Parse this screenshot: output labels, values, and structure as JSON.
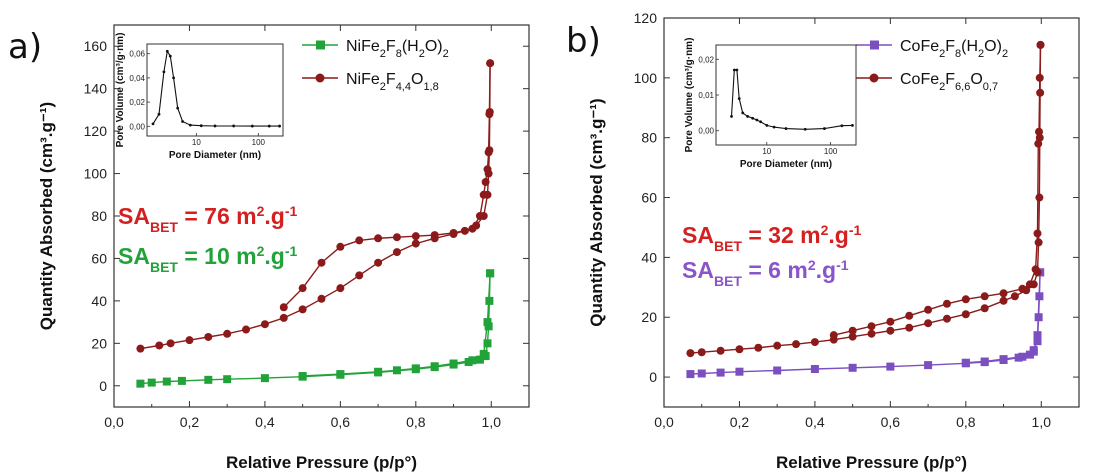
{
  "colors": {
    "red": "#8b1a1a",
    "green": "#22a33a",
    "purple": "#7b4fc0",
    "sa_red": "#d42020",
    "sa_green": "#22a33a",
    "sa_purple": "#8a55c8"
  },
  "chart_data": [
    {
      "type": "line",
      "panel_label": "a)",
      "xlabel": "Relative Pressure (p/p°)",
      "ylabel": "Quantity Absorbed (cm³.g⁻¹)",
      "xlim": [
        0,
        1.1
      ],
      "ylim": [
        -10,
        170
      ],
      "x_ticks": [
        {
          "v": 0,
          "label": "0,0"
        },
        {
          "v": 0.2,
          "label": "0,2"
        },
        {
          "v": 0.4,
          "label": "0,4"
        },
        {
          "v": 0.6,
          "label": "0,6"
        },
        {
          "v": 0.8,
          "label": "0,8"
        },
        {
          "v": 1.0,
          "label": "1,0"
        }
      ],
      "y_ticks": [
        {
          "v": 0,
          "label": "0"
        },
        {
          "v": 20,
          "label": "20"
        },
        {
          "v": 40,
          "label": "40"
        },
        {
          "v": 60,
          "label": "60"
        },
        {
          "v": 80,
          "label": "80"
        },
        {
          "v": 100,
          "label": "100"
        },
        {
          "v": 120,
          "label": "120"
        },
        {
          "v": 140,
          "label": "140"
        },
        {
          "v": 160,
          "label": "160"
        }
      ],
      "series": [
        {
          "name_main": "NiFe",
          "name_sub": [
            "2",
            "8",
            "2"
          ],
          "name_parts": [
            [
              "NiFe",
              ""
            ],
            [
              "2",
              "sub"
            ],
            [
              "F",
              ""
            ],
            [
              "8",
              "sub"
            ],
            [
              "(H",
              ""
            ],
            [
              "2",
              "sub"
            ],
            [
              "O)",
              ""
            ],
            [
              "2",
              "sub"
            ]
          ],
          "color": "#22a33a",
          "marker": "square",
          "adsorption": [
            [
              0.07,
              1
            ],
            [
              0.1,
              1.5
            ],
            [
              0.14,
              2
            ],
            [
              0.18,
              2.3
            ],
            [
              0.25,
              2.8
            ],
            [
              0.3,
              3.1
            ],
            [
              0.4,
              3.6
            ],
            [
              0.5,
              4.3
            ],
            [
              0.6,
              5.2
            ],
            [
              0.7,
              6.3
            ],
            [
              0.8,
              7.8
            ],
            [
              0.85,
              8.8
            ],
            [
              0.9,
              10
            ],
            [
              0.94,
              11.2
            ],
            [
              0.97,
              12.3
            ],
            [
              0.985,
              14
            ],
            [
              0.99,
              20
            ],
            [
              0.993,
              28
            ],
            [
              0.995,
              40
            ],
            [
              0.997,
              53
            ]
          ],
          "desorption": [
            [
              0.997,
              53
            ],
            [
              0.99,
              30
            ],
            [
              0.98,
              15
            ],
            [
              0.95,
              12
            ],
            [
              0.9,
              10.5
            ],
            [
              0.85,
              9.2
            ],
            [
              0.8,
              8.2
            ],
            [
              0.75,
              7.3
            ],
            [
              0.7,
              6.6
            ],
            [
              0.6,
              5.5
            ],
            [
              0.5,
              4.6
            ]
          ]
        },
        {
          "name_parts": [
            [
              "NiFe",
              ""
            ],
            [
              "2",
              "sub"
            ],
            [
              "F",
              ""
            ],
            [
              "4,4",
              "sub"
            ],
            [
              "O",
              ""
            ],
            [
              "1,8",
              "sub"
            ]
          ],
          "color": "#8b1a1a",
          "marker": "circle",
          "adsorption": [
            [
              0.07,
              17.5
            ],
            [
              0.12,
              19
            ],
            [
              0.15,
              20
            ],
            [
              0.2,
              21.5
            ],
            [
              0.25,
              23
            ],
            [
              0.3,
              24.5
            ],
            [
              0.35,
              26.5
            ],
            [
              0.4,
              29
            ],
            [
              0.45,
              32
            ],
            [
              0.5,
              36
            ],
            [
              0.55,
              41
            ],
            [
              0.6,
              46
            ],
            [
              0.65,
              52
            ],
            [
              0.7,
              58
            ],
            [
              0.75,
              63
            ],
            [
              0.8,
              67
            ],
            [
              0.85,
              69.5
            ],
            [
              0.9,
              71.5
            ],
            [
              0.93,
              73
            ],
            [
              0.96,
              75.5
            ],
            [
              0.98,
              80
            ],
            [
              0.99,
              90
            ],
            [
              0.993,
              100
            ],
            [
              0.995,
              111
            ],
            [
              0.996,
              129
            ],
            [
              0.997,
              152
            ]
          ],
          "desorption": [
            [
              0.997,
              152
            ],
            [
              0.995,
              128
            ],
            [
              0.993,
              110
            ],
            [
              0.99,
              102
            ],
            [
              0.985,
              96
            ],
            [
              0.98,
              90
            ],
            [
              0.97,
              80
            ],
            [
              0.95,
              74
            ],
            [
              0.9,
              72
            ],
            [
              0.85,
              71
            ],
            [
              0.8,
              70.5
            ],
            [
              0.75,
              70
            ],
            [
              0.7,
              69.5
            ],
            [
              0.65,
              68.5
            ],
            [
              0.6,
              65.5
            ],
            [
              0.55,
              58
            ],
            [
              0.5,
              46
            ],
            [
              0.45,
              37
            ]
          ]
        }
      ],
      "sa_labels": [
        {
          "prefix": "SA",
          "sub": "BET",
          "text": " = 76 m",
          "sup2": "2",
          "tail": ".g",
          "sup3": "-1",
          "color": "#d42020"
        },
        {
          "prefix": "SA",
          "sub": "BET",
          "text": " = 10 m",
          "sup2": "2",
          "tail": ".g",
          "sup3": "-1",
          "color": "#22a33a"
        }
      ],
      "inset": {
        "ylabel": "Pore Volume (cm³/g·nm)",
        "xlabel": "Pore Diameter (nm)",
        "y_ticks": [
          {
            "v": 0,
            "label": "0,00"
          },
          {
            "v": 0.02,
            "label": "0,02"
          },
          {
            "v": 0.04,
            "label": "0,04"
          },
          {
            "v": 0.06,
            "label": "0,06"
          }
        ],
        "x_ticks": [
          {
            "v": 10,
            "label": "10"
          },
          {
            "v": 100,
            "label": "100"
          }
        ],
        "xlim": [
          1.6,
          250
        ],
        "ylim": [
          -0.008,
          0.068
        ],
        "log_x": true,
        "points": [
          [
            2,
            0.002
          ],
          [
            2.5,
            0.01
          ],
          [
            3,
            0.045
          ],
          [
            3.4,
            0.062
          ],
          [
            3.8,
            0.058
          ],
          [
            4.3,
            0.04
          ],
          [
            5,
            0.015
          ],
          [
            6,
            0.004
          ],
          [
            8,
            0.001
          ],
          [
            12,
            0.0005
          ],
          [
            20,
            0.0003
          ],
          [
            40,
            0.0003
          ],
          [
            80,
            0.0002
          ],
          [
            150,
            0.0002
          ],
          [
            220,
            0.0002
          ]
        ]
      }
    },
    {
      "type": "line",
      "panel_label": "b)",
      "xlabel": "Relative Pressure (p/p°)",
      "ylabel": "Quantity Absorbed (cm³.g⁻¹)",
      "xlim": [
        0,
        1.1
      ],
      "ylim": [
        -10,
        120
      ],
      "x_ticks": [
        {
          "v": 0,
          "label": "0,0"
        },
        {
          "v": 0.2,
          "label": "0,2"
        },
        {
          "v": 0.4,
          "label": "0,4"
        },
        {
          "v": 0.6,
          "label": "0,6"
        },
        {
          "v": 0.8,
          "label": "0,8"
        },
        {
          "v": 1.0,
          "label": "1,0"
        }
      ],
      "y_ticks": [
        {
          "v": 0,
          "label": "0"
        },
        {
          "v": 20,
          "label": "20"
        },
        {
          "v": 40,
          "label": "40"
        },
        {
          "v": 60,
          "label": "60"
        },
        {
          "v": 80,
          "label": "80"
        },
        {
          "v": 100,
          "label": "100"
        },
        {
          "v": 120,
          "label": "120"
        }
      ],
      "series": [
        {
          "name_parts": [
            [
              "CoFe",
              ""
            ],
            [
              "2",
              "sub"
            ],
            [
              "F",
              ""
            ],
            [
              "8",
              "sub"
            ],
            [
              "(H",
              ""
            ],
            [
              "2",
              "sub"
            ],
            [
              "O)",
              ""
            ],
            [
              "2",
              "sub"
            ]
          ],
          "color": "#7b4fc0",
          "marker": "square",
          "adsorption": [
            [
              0.07,
              1
            ],
            [
              0.1,
              1.2
            ],
            [
              0.15,
              1.5
            ],
            [
              0.2,
              1.8
            ],
            [
              0.3,
              2.2
            ],
            [
              0.4,
              2.7
            ],
            [
              0.5,
              3.1
            ],
            [
              0.6,
              3.5
            ],
            [
              0.7,
              4
            ],
            [
              0.8,
              4.6
            ],
            [
              0.85,
              5
            ],
            [
              0.9,
              5.7
            ],
            [
              0.94,
              6.5
            ],
            [
              0.97,
              7.5
            ],
            [
              0.98,
              9
            ],
            [
              0.99,
              12
            ],
            [
              0.993,
              20
            ],
            [
              0.995,
              27
            ],
            [
              0.997,
              35
            ]
          ],
          "desorption": [
            [
              0.997,
              35
            ],
            [
              0.99,
              14
            ],
            [
              0.98,
              8.5
            ],
            [
              0.95,
              6.8
            ],
            [
              0.9,
              6
            ],
            [
              0.85,
              5.2
            ],
            [
              0.8,
              4.8
            ]
          ]
        },
        {
          "name_parts": [
            [
              "CoFe",
              ""
            ],
            [
              "2",
              "sub"
            ],
            [
              "F",
              ""
            ],
            [
              "6,6",
              "sub"
            ],
            [
              "O",
              ""
            ],
            [
              "0,7",
              "sub"
            ]
          ],
          "color": "#8b1a1a",
          "marker": "circle",
          "adsorption": [
            [
              0.07,
              8
            ],
            [
              0.1,
              8.3
            ],
            [
              0.15,
              8.8
            ],
            [
              0.2,
              9.3
            ],
            [
              0.25,
              9.8
            ],
            [
              0.3,
              10.5
            ],
            [
              0.35,
              11
            ],
            [
              0.4,
              11.7
            ],
            [
              0.45,
              12.5
            ],
            [
              0.5,
              13.5
            ],
            [
              0.55,
              14.5
            ],
            [
              0.6,
              15.5
            ],
            [
              0.65,
              16.5
            ],
            [
              0.7,
              18
            ],
            [
              0.75,
              19.5
            ],
            [
              0.8,
              21
            ],
            [
              0.85,
              23
            ],
            [
              0.9,
              25.5
            ],
            [
              0.93,
              27
            ],
            [
              0.96,
              29
            ],
            [
              0.98,
              31
            ],
            [
              0.99,
              35
            ],
            [
              0.993,
              45
            ],
            [
              0.995,
              60
            ],
            [
              0.996,
              80
            ],
            [
              0.997,
              95
            ],
            [
              0.998,
              111
            ]
          ],
          "desorption": [
            [
              0.998,
              111
            ],
            [
              0.996,
              100
            ],
            [
              0.994,
              82
            ],
            [
              0.992,
              78
            ],
            [
              0.99,
              48
            ],
            [
              0.985,
              36
            ],
            [
              0.97,
              31
            ],
            [
              0.95,
              29.5
            ],
            [
              0.9,
              28
            ],
            [
              0.85,
              27
            ],
            [
              0.8,
              26
            ],
            [
              0.75,
              24.5
            ],
            [
              0.7,
              22.5
            ],
            [
              0.65,
              20.5
            ],
            [
              0.6,
              18.5
            ],
            [
              0.55,
              17
            ],
            [
              0.5,
              15.5
            ],
            [
              0.45,
              14
            ]
          ]
        }
      ],
      "sa_labels": [
        {
          "prefix": "SA",
          "sub": "BET",
          "text": " = 32 m",
          "sup2": "2",
          "tail": ".g",
          "sup3": "-1",
          "color": "#d42020"
        },
        {
          "prefix": "SA",
          "sub": "BET",
          "text": " = 6 m",
          "sup2": "2",
          "tail": ".g",
          "sup3": "-1",
          "color": "#8a55c8"
        }
      ],
      "inset": {
        "ylabel": "Pore Volume (cm³/g·nm)",
        "xlabel": "Pore Diameter (nm)",
        "y_ticks": [
          {
            "v": 0,
            "label": "0,00"
          },
          {
            "v": 0.01,
            "label": "0,01"
          },
          {
            "v": 0.02,
            "label": "0,02"
          }
        ],
        "x_ticks": [
          {
            "v": 10,
            "label": "10"
          },
          {
            "v": 100,
            "label": "100"
          }
        ],
        "xlim": [
          1.6,
          250
        ],
        "ylim": [
          -0.004,
          0.024
        ],
        "log_x": true,
        "points": [
          [
            2.8,
            0.004
          ],
          [
            3.1,
            0.017
          ],
          [
            3.4,
            0.017
          ],
          [
            3.7,
            0.009
          ],
          [
            4.2,
            0.005
          ],
          [
            5,
            0.004
          ],
          [
            6,
            0.0035
          ],
          [
            7,
            0.003
          ],
          [
            8,
            0.0025
          ],
          [
            10,
            0.0015
          ],
          [
            13,
            0.001
          ],
          [
            20,
            0.0006
          ],
          [
            40,
            0.0004
          ],
          [
            80,
            0.0006
          ],
          [
            150,
            0.0014
          ],
          [
            220,
            0.0015
          ]
        ]
      }
    }
  ]
}
